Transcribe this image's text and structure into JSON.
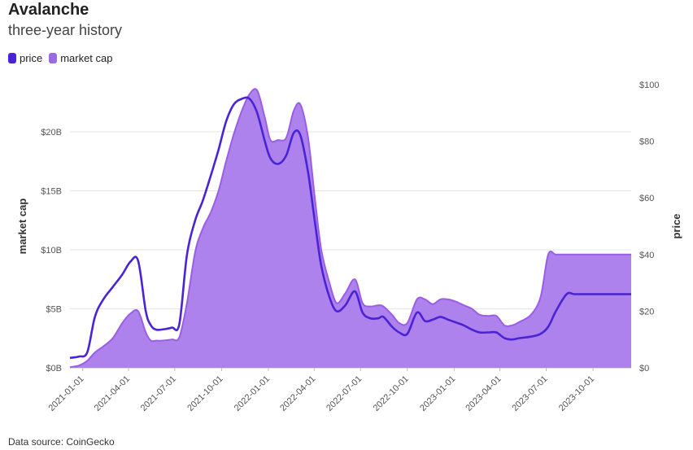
{
  "header": {
    "title": "Avalanche",
    "subtitle": "three-year history"
  },
  "legend": [
    {
      "label": "price",
      "color": "#4a23d6"
    },
    {
      "label": "market cap",
      "color": "#9b6ae0"
    }
  ],
  "footer": {
    "source": "Data source: CoinGecko"
  },
  "chart_data": {
    "type": "area",
    "title": "Avalanche",
    "subtitle": "three-year history",
    "x_tick_labels": [
      "2021-01-01",
      "2021-04-01",
      "2021-07-01",
      "2021-10-01",
      "2022-01-01",
      "2022-04-01",
      "2022-07-01",
      "2022-10-01",
      "2023-01-01",
      "2023-04-01",
      "2023-07-01",
      "2023-10-01"
    ],
    "y_left": {
      "label": "market cap",
      "ticks": [
        "$0B",
        "$5B",
        "$10B",
        "$15B",
        "$20B"
      ],
      "ylim": [
        0,
        24
      ]
    },
    "y_right": {
      "label": "price",
      "ticks": [
        "$0",
        "$20",
        "$40",
        "$60",
        "$80",
        "$100"
      ],
      "ylim": [
        0,
        100
      ]
    },
    "grid": true,
    "legend_position": "top-left",
    "x": [
      "2020-12-07",
      "2020-12-25",
      "2021-01-10",
      "2021-01-25",
      "2021-02-10",
      "2021-03-01",
      "2021-03-20",
      "2021-04-05",
      "2021-04-20",
      "2021-05-05",
      "2021-05-15",
      "2021-05-25",
      "2021-06-05",
      "2021-06-25",
      "2021-07-10",
      "2021-07-25",
      "2021-08-10",
      "2021-08-25",
      "2021-09-10",
      "2021-09-25",
      "2021-10-10",
      "2021-10-25",
      "2021-11-10",
      "2021-11-25",
      "2021-12-10",
      "2021-12-25",
      "2022-01-05",
      "2022-01-20",
      "2022-02-05",
      "2022-02-20",
      "2022-03-05",
      "2022-03-20",
      "2022-04-02",
      "2022-04-15",
      "2022-05-01",
      "2022-05-15",
      "2022-06-01",
      "2022-06-20",
      "2022-07-05",
      "2022-07-20",
      "2022-08-05",
      "2022-08-15",
      "2022-09-01",
      "2022-09-15",
      "2022-10-01",
      "2022-10-20",
      "2022-11-05",
      "2022-11-20",
      "2022-12-05",
      "2022-12-20",
      "2023-01-05",
      "2023-01-20",
      "2023-02-05",
      "2023-02-20",
      "2023-03-10",
      "2023-03-25",
      "2023-04-10",
      "2023-04-25",
      "2023-05-10",
      "2023-06-01",
      "2023-06-20",
      "2023-07-05",
      "2023-07-20",
      "2023-08-10",
      "2023-08-25",
      "2023-09-10",
      "2023-10-01",
      "2023-10-20",
      "2023-11-05",
      "2023-11-20",
      "2023-12-05",
      "2023-12-15"
    ],
    "series": [
      {
        "name": "market cap",
        "color": "#9b6ae0",
        "axis": "left",
        "values": [
          0.05,
          0.2,
          0.6,
          1.3,
          1.8,
          2.5,
          3.8,
          4.6,
          4.8,
          3.0,
          2.3,
          2.3,
          2.3,
          2.4,
          2.6,
          5.5,
          9.8,
          11.8,
          13.2,
          15.0,
          17.5,
          19.8,
          21.8,
          23.2,
          23.5,
          21.2,
          19.3,
          19.3,
          19.5,
          21.8,
          22.3,
          19.5,
          14.5,
          10.0,
          7.2,
          5.5,
          6.3,
          7.5,
          5.5,
          5.2,
          5.3,
          5.2,
          4.5,
          3.8,
          3.8,
          5.8,
          5.8,
          5.4,
          5.8,
          5.8,
          5.6,
          5.3,
          5.0,
          4.5,
          4.4,
          4.4,
          3.6,
          3.6,
          3.9,
          4.5,
          6.0,
          9.6,
          9.6,
          9.6,
          9.6,
          9.6,
          9.6,
          9.6,
          9.6,
          9.6,
          9.6,
          9.6
        ]
      },
      {
        "name": "price",
        "color": "#4a23d6",
        "axis": "right",
        "values": [
          3.5,
          4.0,
          5.5,
          18.0,
          24.0,
          28.5,
          33.0,
          37.5,
          37.8,
          20.0,
          15.0,
          13.5,
          13.5,
          14.2,
          15.5,
          40.0,
          52.0,
          59.0,
          68.0,
          77.0,
          87.0,
          93.0,
          95.0,
          95.0,
          90.0,
          80.0,
          74.0,
          72.0,
          75.0,
          83.0,
          82.0,
          69.0,
          52.0,
          36.0,
          25.0,
          20.0,
          22.0,
          27.0,
          19.5,
          17.5,
          17.5,
          18.0,
          14.5,
          12.5,
          12.0,
          19.5,
          16.5,
          17.0,
          18.0,
          17.0,
          16.0,
          15.0,
          13.5,
          12.5,
          12.5,
          12.5,
          10.5,
          10.0,
          10.5,
          11.0,
          12.0,
          14.5,
          20.0,
          26.0,
          26.0,
          26.0,
          26.0,
          26.0,
          26.0,
          26.0,
          26.0,
          26.0
        ]
      }
    ]
  }
}
